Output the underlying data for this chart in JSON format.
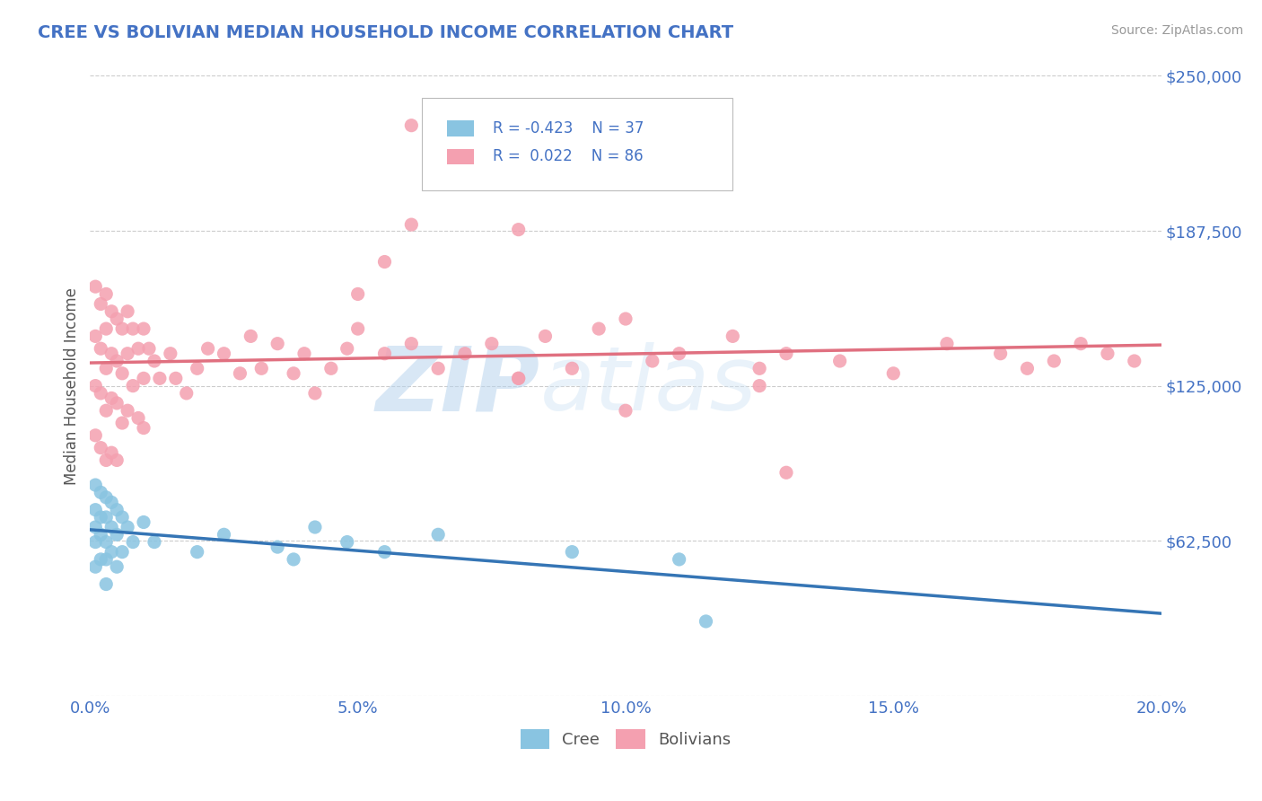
{
  "title": "CREE VS BOLIVIAN MEDIAN HOUSEHOLD INCOME CORRELATION CHART",
  "source_text": "Source: ZipAtlas.com",
  "ylabel": "Median Household Income",
  "xlim": [
    0.0,
    0.2
  ],
  "ylim": [
    0,
    250000
  ],
  "yticks": [
    0,
    62500,
    125000,
    187500,
    250000
  ],
  "ytick_labels": [
    "",
    "$62,500",
    "$125,000",
    "$187,500",
    "$250,000"
  ],
  "xticks": [
    0.0,
    0.05,
    0.1,
    0.15,
    0.2
  ],
  "xtick_labels": [
    "0.0%",
    "5.0%",
    "10.0%",
    "15.0%",
    "20.0%"
  ],
  "cree_color": "#89c4e1",
  "bolivian_color": "#f4a0b0",
  "cree_line_color": "#3575b5",
  "bolivian_line_color": "#e07080",
  "tick_label_color": "#4472c4",
  "title_color": "#4472c4",
  "ylabel_color": "#555555",
  "background_color": "#ffffff",
  "plot_bg_color": "#ffffff",
  "grid_color": "#cccccc",
  "legend_R_cree": "-0.423",
  "legend_N_cree": "37",
  "legend_R_bolivian": "0.022",
  "legend_N_bolivian": "86",
  "watermark_zip": "ZIP",
  "watermark_atlas": "atlas",
  "cree_points_x": [
    0.001,
    0.001,
    0.001,
    0.001,
    0.001,
    0.002,
    0.002,
    0.002,
    0.002,
    0.003,
    0.003,
    0.003,
    0.003,
    0.003,
    0.004,
    0.004,
    0.004,
    0.005,
    0.005,
    0.005,
    0.006,
    0.006,
    0.007,
    0.008,
    0.01,
    0.012,
    0.02,
    0.025,
    0.035,
    0.038,
    0.042,
    0.048,
    0.055,
    0.065,
    0.09,
    0.11,
    0.115
  ],
  "cree_points_y": [
    85000,
    75000,
    68000,
    62000,
    52000,
    82000,
    72000,
    65000,
    55000,
    80000,
    72000,
    62000,
    55000,
    45000,
    78000,
    68000,
    58000,
    75000,
    65000,
    52000,
    72000,
    58000,
    68000,
    62000,
    70000,
    62000,
    58000,
    65000,
    60000,
    55000,
    68000,
    62000,
    58000,
    65000,
    58000,
    55000,
    30000
  ],
  "bolivian_points_x": [
    0.001,
    0.001,
    0.001,
    0.001,
    0.002,
    0.002,
    0.002,
    0.002,
    0.003,
    0.003,
    0.003,
    0.003,
    0.003,
    0.004,
    0.004,
    0.004,
    0.004,
    0.005,
    0.005,
    0.005,
    0.005,
    0.006,
    0.006,
    0.006,
    0.007,
    0.007,
    0.007,
    0.008,
    0.008,
    0.009,
    0.009,
    0.01,
    0.01,
    0.01,
    0.011,
    0.012,
    0.013,
    0.015,
    0.016,
    0.018,
    0.02,
    0.022,
    0.025,
    0.028,
    0.03,
    0.032,
    0.035,
    0.038,
    0.04,
    0.042,
    0.045,
    0.048,
    0.05,
    0.055,
    0.06,
    0.065,
    0.07,
    0.075,
    0.08,
    0.085,
    0.09,
    0.095,
    0.1,
    0.105,
    0.11,
    0.12,
    0.125,
    0.13,
    0.14,
    0.15,
    0.16,
    0.17,
    0.175,
    0.18,
    0.185,
    0.19,
    0.195,
    0.05,
    0.055,
    0.06,
    0.08,
    0.1,
    0.125,
    0.13,
    0.06,
    0.08
  ],
  "bolivian_points_y": [
    165000,
    145000,
    125000,
    105000,
    158000,
    140000,
    122000,
    100000,
    162000,
    148000,
    132000,
    115000,
    95000,
    155000,
    138000,
    120000,
    98000,
    152000,
    135000,
    118000,
    95000,
    148000,
    130000,
    110000,
    155000,
    138000,
    115000,
    148000,
    125000,
    140000,
    112000,
    148000,
    128000,
    108000,
    140000,
    135000,
    128000,
    138000,
    128000,
    122000,
    132000,
    140000,
    138000,
    130000,
    145000,
    132000,
    142000,
    130000,
    138000,
    122000,
    132000,
    140000,
    148000,
    138000,
    142000,
    132000,
    138000,
    142000,
    128000,
    145000,
    132000,
    148000,
    152000,
    135000,
    138000,
    145000,
    132000,
    138000,
    135000,
    130000,
    142000,
    138000,
    132000,
    135000,
    142000,
    138000,
    135000,
    162000,
    175000,
    190000,
    188000,
    115000,
    125000,
    90000,
    230000,
    128000
  ]
}
